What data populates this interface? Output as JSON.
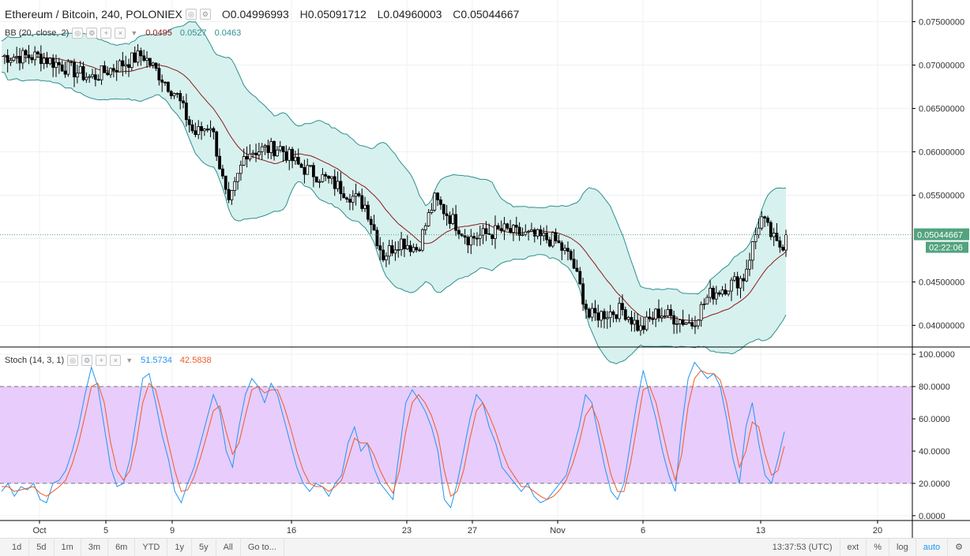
{
  "header": {
    "symbol": "Ethereum / Bitcoin, 240, POLONIEX",
    "ohlc": {
      "o_label": "O",
      "o": "0.04996993",
      "h_label": "H",
      "h": "0.05091712",
      "l_label": "L",
      "l": "0.04960003",
      "c_label": "C",
      "c": "0.05044667"
    }
  },
  "bb_legend": {
    "name": "BB (20, close, 2)",
    "basis": "0.0495",
    "upper": "0.0527",
    "lower": "0.0463"
  },
  "stoch_legend": {
    "name": "Stoch (14, 3, 1)",
    "k": "51.5734",
    "d": "42.5838"
  },
  "price_axis": {
    "ticks": [
      "0.07500000",
      "0.07000000",
      "0.06500000",
      "0.06000000",
      "0.05500000",
      "0.04500000",
      "0.04000000"
    ],
    "last_price": "0.05044667",
    "countdown": "02:22:06"
  },
  "stoch_axis": {
    "ticks": [
      "100.0000",
      "80.0000",
      "60.0000",
      "40.0000",
      "20.0000",
      "0.0000"
    ]
  },
  "time_axis": {
    "labels": [
      "Oct",
      "5",
      "9",
      "16",
      "23",
      "27",
      "Nov",
      "6",
      "13",
      "20"
    ]
  },
  "toolbar": {
    "timeframes": [
      "1d",
      "5d",
      "1m",
      "3m",
      "6m",
      "YTD",
      "1y",
      "5y",
      "All",
      "Go to..."
    ],
    "time": "13:37:53 (UTC)",
    "ext": "ext",
    "percent": "%",
    "log": "log",
    "auto": "auto"
  },
  "colors": {
    "up": "#ffffff",
    "down": "#000000",
    "bb_line": "#2e8f8f",
    "bb_fill": "#d7f1ee",
    "basis": "#8b1a1a",
    "k": "#2196f3",
    "d": "#f05a28",
    "band": "#e8ccfb",
    "last_price_bg": "#52a37e"
  },
  "chart_data": [
    {
      "type": "candlestick",
      "title": "Ethereum / Bitcoin, 240, POLONIEX",
      "x": [
        "Oct",
        "5",
        "9",
        "16",
        "23",
        "27",
        "Nov",
        "6",
        "13",
        "20"
      ],
      "ylim": [
        0.0375,
        0.0775
      ],
      "keypoints_close": [
        {
          "date": "Oct 1",
          "close": 0.071
        },
        {
          "date": "Oct 4",
          "close": 0.0685
        },
        {
          "date": "Oct 7",
          "close": 0.0712
        },
        {
          "date": "Oct 9",
          "close": 0.0665
        },
        {
          "date": "Oct 10",
          "close": 0.062
        },
        {
          "date": "Oct 11",
          "close": 0.0632
        },
        {
          "date": "Oct 12",
          "close": 0.0535
        },
        {
          "date": "Oct 13",
          "close": 0.06
        },
        {
          "date": "Oct 15",
          "close": 0.0605
        },
        {
          "date": "Oct 16",
          "close": 0.0585
        },
        {
          "date": "Oct 18",
          "close": 0.0565
        },
        {
          "date": "Oct 20",
          "close": 0.0538
        },
        {
          "date": "Oct 21",
          "close": 0.048
        },
        {
          "date": "Oct 22",
          "close": 0.0498
        },
        {
          "date": "Oct 23",
          "close": 0.0488
        },
        {
          "date": "Oct 24",
          "close": 0.0545
        },
        {
          "date": "Oct 26",
          "close": 0.05
        },
        {
          "date": "Oct 28",
          "close": 0.051
        },
        {
          "date": "Oct 29",
          "close": 0.0505
        },
        {
          "date": "Oct 31",
          "close": 0.0498
        },
        {
          "date": "Nov 1",
          "close": 0.0475
        },
        {
          "date": "Nov 2",
          "close": 0.041
        },
        {
          "date": "Nov 4",
          "close": 0.0418
        },
        {
          "date": "Nov 5",
          "close": 0.0395
        },
        {
          "date": "Nov 6",
          "close": 0.0415
        },
        {
          "date": "Nov 8",
          "close": 0.0402
        },
        {
          "date": "Nov 9",
          "close": 0.0435
        },
        {
          "date": "Nov 11",
          "close": 0.0455
        },
        {
          "date": "Nov 12",
          "close": 0.0525
        },
        {
          "date": "Nov 13",
          "close": 0.049
        },
        {
          "date": "Nov 14",
          "close": 0.0504
        }
      ],
      "overlays": [
        {
          "name": "BB basis",
          "type": "line"
        },
        {
          "name": "BB upper",
          "type": "line"
        },
        {
          "name": "BB lower",
          "type": "line"
        }
      ]
    },
    {
      "type": "line",
      "title": "Stoch (14, 3, 1)",
      "ylim": [
        0,
        100
      ],
      "bands": [
        20,
        80
      ],
      "series": [
        {
          "name": "%K",
          "values": [
            15,
            20,
            12,
            18,
            16,
            20,
            10,
            8,
            20,
            22,
            28,
            40,
            55,
            75,
            92,
            80,
            55,
            30,
            18,
            20,
            35,
            60,
            85,
            88,
            70,
            50,
            35,
            15,
            8,
            20,
            30,
            45,
            60,
            75,
            65,
            40,
            30,
            55,
            75,
            85,
            80,
            70,
            82,
            75,
            60,
            45,
            30,
            20,
            15,
            20,
            18,
            12,
            20,
            25,
            45,
            55,
            40,
            45,
            30,
            20,
            15,
            10,
            40,
            70,
            78,
            72,
            65,
            55,
            40,
            10,
            5,
            20,
            40,
            60,
            75,
            70,
            55,
            45,
            30,
            25,
            20,
            15,
            20,
            12,
            8,
            10,
            15,
            20,
            25,
            40,
            55,
            75,
            70,
            50,
            30,
            15,
            10,
            20,
            45,
            70,
            90,
            75,
            60,
            40,
            25,
            15,
            55,
            85,
            95,
            90,
            85,
            88,
            80,
            60,
            35,
            20,
            55,
            70,
            45,
            25,
            20,
            35,
            52
          ]
        },
        {
          "name": "%D",
          "values": [
            18,
            18,
            15,
            16,
            17,
            18,
            14,
            12,
            15,
            18,
            22,
            32,
            45,
            62,
            80,
            82,
            70,
            45,
            28,
            22,
            28,
            45,
            70,
            82,
            78,
            62,
            45,
            28,
            15,
            16,
            24,
            36,
            50,
            65,
            68,
            52,
            38,
            45,
            62,
            78,
            80,
            76,
            78,
            78,
            68,
            55,
            40,
            28,
            20,
            18,
            18,
            15,
            18,
            22,
            35,
            48,
            45,
            45,
            38,
            28,
            20,
            14,
            28,
            52,
            70,
            75,
            70,
            62,
            50,
            28,
            12,
            15,
            28,
            48,
            65,
            70,
            62,
            52,
            40,
            30,
            24,
            18,
            18,
            15,
            12,
            10,
            12,
            16,
            22,
            32,
            45,
            62,
            68,
            58,
            42,
            25,
            15,
            15,
            32,
            55,
            78,
            80,
            70,
            52,
            35,
            22,
            38,
            68,
            85,
            90,
            88,
            88,
            84,
            70,
            48,
            30,
            40,
            58,
            55,
            38,
            25,
            28,
            43
          ]
        }
      ]
    }
  ]
}
